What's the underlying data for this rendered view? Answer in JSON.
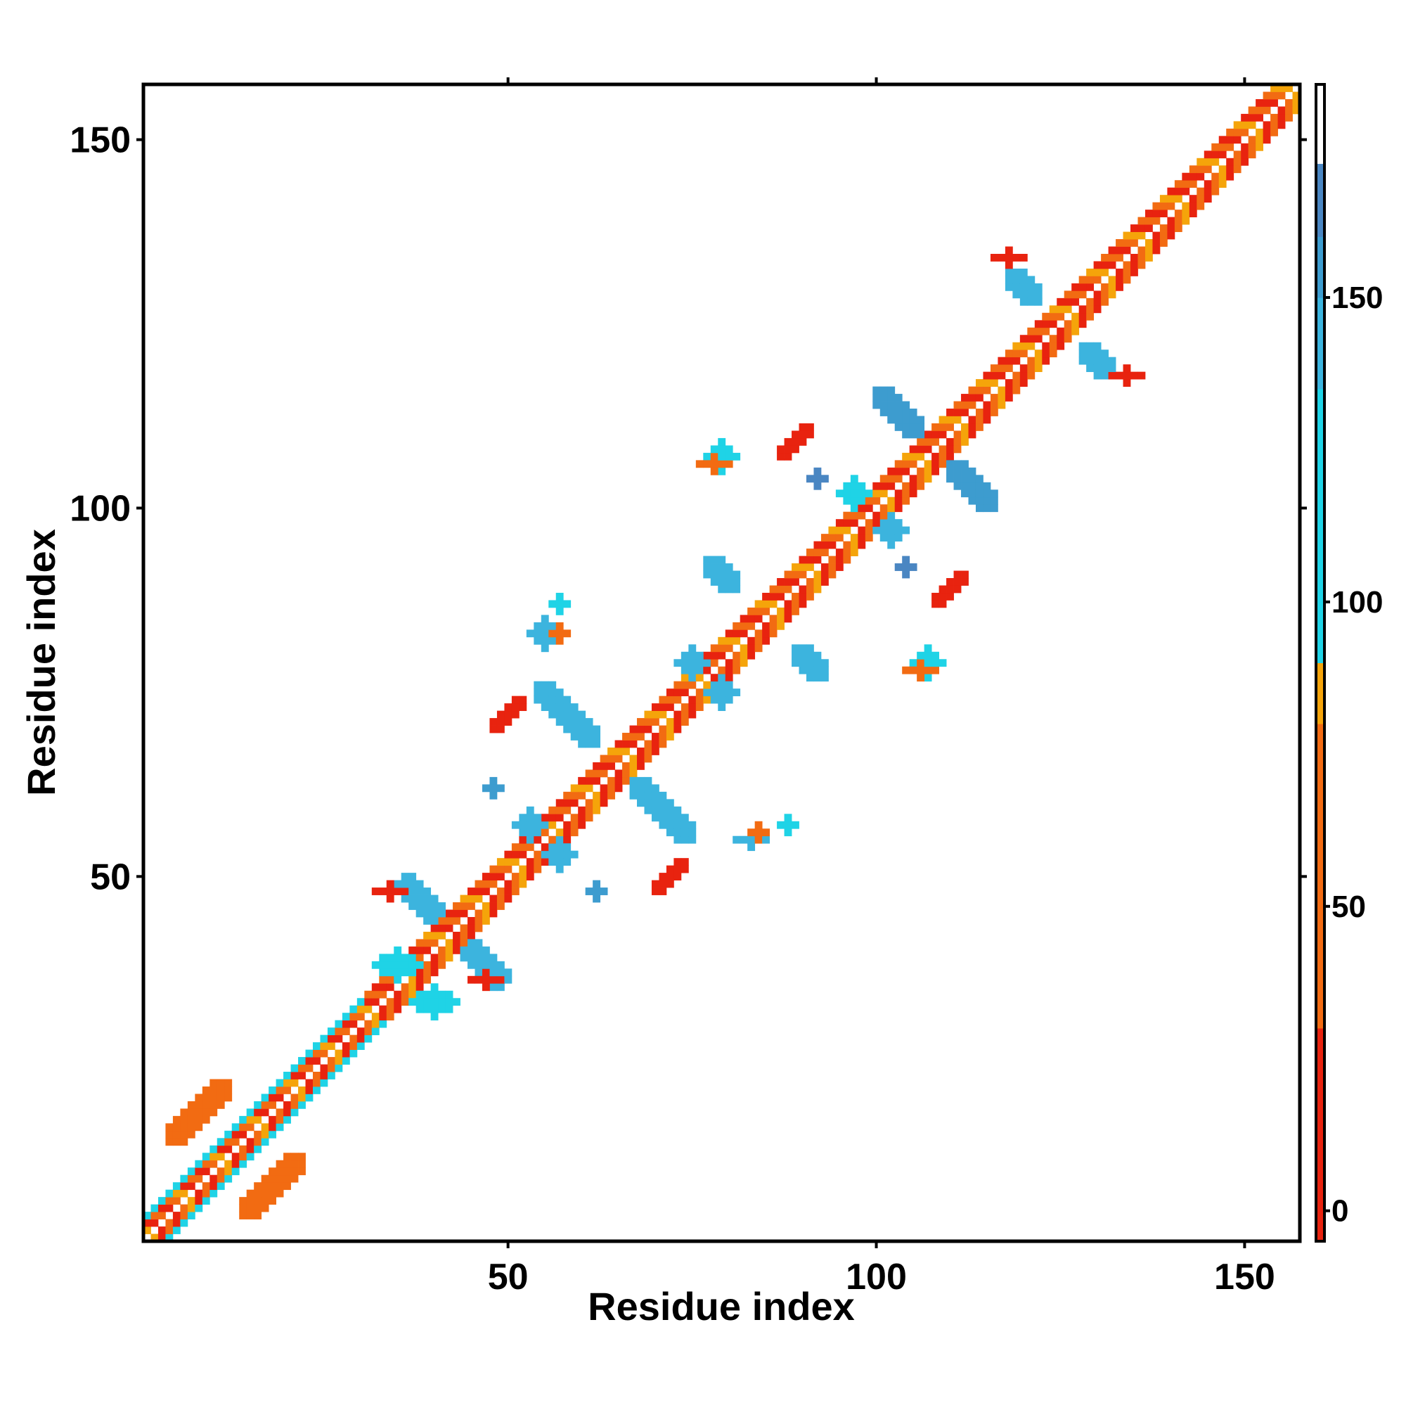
{
  "chart_data": {
    "type": "heatmap",
    "title": "",
    "xlabel": "Residue index",
    "ylabel": "Residue index",
    "xlim": [
      1,
      157
    ],
    "ylim": [
      1,
      157
    ],
    "x_ticks": [
      50,
      100,
      150
    ],
    "y_ticks": [
      50,
      100,
      150
    ],
    "colorbar": {
      "range": [
        -5,
        185
      ],
      "ticks": [
        0,
        50,
        100,
        150
      ],
      "bands": [
        {
          "from": -5,
          "to": 30,
          "color": "#e8230f"
        },
        {
          "from": 30,
          "to": 80,
          "color": "#f26b12"
        },
        {
          "from": 80,
          "to": 90,
          "color": "#f5a40a"
        },
        {
          "from": 90,
          "to": 135,
          "color": "#1fd3e6"
        },
        {
          "from": 135,
          "to": 150,
          "color": "#3cb4de"
        },
        {
          "from": 150,
          "to": 160,
          "color": "#3d9ccf"
        },
        {
          "from": 160,
          "to": 172,
          "color": "#4a86c2"
        },
        {
          "from": 172,
          "to": 185,
          "color": "#ffffff"
        }
      ]
    },
    "diagonal": {
      "start": 1,
      "end": 157,
      "band_width": 3,
      "cyan_offset_until_residue": 30,
      "stripe_values": [
        20,
        60,
        85,
        20,
        60
      ]
    },
    "patches": [
      {
        "cx": 8,
        "cy": 18,
        "rx": 6,
        "ry": 2,
        "angle": 45,
        "value": 60
      },
      {
        "cx": 18,
        "cy": 8,
        "rx": 6,
        "ry": 2,
        "angle": 45,
        "value": 60
      },
      {
        "cx": 38,
        "cy": 47,
        "rx": 4,
        "ry": 2,
        "angle": -45,
        "value": 145
      },
      {
        "cx": 47,
        "cy": 38,
        "rx": 4,
        "ry": 2,
        "angle": -45,
        "value": 145
      },
      {
        "cx": 35,
        "cy": 38,
        "rx": 3,
        "ry": 2,
        "angle": 0,
        "value": 120
      },
      {
        "cx": 40,
        "cy": 33,
        "rx": 3,
        "ry": 2,
        "angle": 0,
        "value": 120
      },
      {
        "cx": 53,
        "cy": 57,
        "rx": 2,
        "ry": 2,
        "angle": 0,
        "value": 140
      },
      {
        "cx": 57,
        "cy": 53,
        "rx": 2,
        "ry": 2,
        "angle": 0,
        "value": 140
      },
      {
        "cx": 58,
        "cy": 72,
        "rx": 6,
        "ry": 2,
        "angle": -45,
        "value": 145
      },
      {
        "cx": 71,
        "cy": 59,
        "rx": 6,
        "ry": 2,
        "angle": -45,
        "value": 145
      },
      {
        "cx": 79,
        "cy": 91,
        "rx": 3,
        "ry": 2,
        "angle": -45,
        "value": 135
      },
      {
        "cx": 91,
        "cy": 79,
        "rx": 3,
        "ry": 2,
        "angle": -45,
        "value": 135
      },
      {
        "cx": 75,
        "cy": 79,
        "rx": 2,
        "ry": 2,
        "angle": 0,
        "value": 140
      },
      {
        "cx": 79,
        "cy": 75,
        "rx": 2,
        "ry": 2,
        "angle": 0,
        "value": 140
      },
      {
        "cx": 97,
        "cy": 102,
        "rx": 2,
        "ry": 2,
        "angle": 0,
        "value": 125
      },
      {
        "cx": 102,
        "cy": 97,
        "rx": 2,
        "ry": 2,
        "angle": 0,
        "value": 145
      },
      {
        "cx": 103,
        "cy": 113,
        "rx": 5,
        "ry": 2,
        "angle": -45,
        "value": 150
      },
      {
        "cx": 113,
        "cy": 103,
        "rx": 5,
        "ry": 2,
        "angle": -45,
        "value": 150
      },
      {
        "cx": 120,
        "cy": 130,
        "rx": 3,
        "ry": 2,
        "angle": -45,
        "value": 140
      },
      {
        "cx": 130,
        "cy": 120,
        "rx": 3,
        "ry": 2,
        "angle": -45,
        "value": 140
      },
      {
        "cx": 34,
        "cy": 48,
        "rx": 2,
        "ry": 1,
        "angle": 0,
        "value": 20
      },
      {
        "cx": 47,
        "cy": 36,
        "rx": 2,
        "ry": 1,
        "angle": 0,
        "value": 20
      },
      {
        "cx": 50,
        "cy": 72,
        "rx": 3,
        "ry": 1,
        "angle": 45,
        "value": 20
      },
      {
        "cx": 72,
        "cy": 50,
        "rx": 3,
        "ry": 1,
        "angle": 45,
        "value": 20
      },
      {
        "cx": 55,
        "cy": 83,
        "rx": 2,
        "ry": 2,
        "angle": 0,
        "value": 135
      },
      {
        "cx": 57,
        "cy": 87,
        "rx": 1,
        "ry": 1,
        "angle": 0,
        "value": 120
      },
      {
        "cx": 83,
        "cy": 55,
        "rx": 2,
        "ry": 1,
        "angle": 0,
        "value": 135
      },
      {
        "cx": 88,
        "cy": 57,
        "rx": 1,
        "ry": 1,
        "angle": 0,
        "value": 120
      },
      {
        "cx": 57,
        "cy": 83,
        "rx": 1,
        "ry": 1,
        "angle": 0,
        "value": 60
      },
      {
        "cx": 84,
        "cy": 56,
        "rx": 1,
        "ry": 1,
        "angle": 0,
        "value": 60
      },
      {
        "cx": 79,
        "cy": 107,
        "rx": 2,
        "ry": 2,
        "angle": 0,
        "value": 125
      },
      {
        "cx": 78,
        "cy": 106,
        "rx": 2,
        "ry": 1,
        "angle": 0,
        "value": 60
      },
      {
        "cx": 107,
        "cy": 79,
        "rx": 2,
        "ry": 2,
        "angle": 0,
        "value": 125
      },
      {
        "cx": 106,
        "cy": 78,
        "rx": 2,
        "ry": 1,
        "angle": 0,
        "value": 60
      },
      {
        "cx": 89,
        "cy": 109,
        "rx": 3,
        "ry": 1,
        "angle": 45,
        "value": 20
      },
      {
        "cx": 110,
        "cy": 89,
        "rx": 3,
        "ry": 1,
        "angle": 45,
        "value": 20
      },
      {
        "cx": 118,
        "cy": 134,
        "rx": 2,
        "ry": 1,
        "angle": 0,
        "value": 20
      },
      {
        "cx": 134,
        "cy": 118,
        "rx": 2,
        "ry": 1,
        "angle": 0,
        "value": 20
      },
      {
        "cx": 92,
        "cy": 104,
        "rx": 1,
        "ry": 1,
        "angle": 0,
        "value": 160
      },
      {
        "cx": 104,
        "cy": 92,
        "rx": 1,
        "ry": 1,
        "angle": 0,
        "value": 160
      },
      {
        "cx": 62,
        "cy": 48,
        "rx": 1,
        "ry": 1,
        "angle": 0,
        "value": 150
      },
      {
        "cx": 48,
        "cy": 62,
        "rx": 1,
        "ry": 1,
        "angle": 0,
        "value": 150
      }
    ]
  }
}
